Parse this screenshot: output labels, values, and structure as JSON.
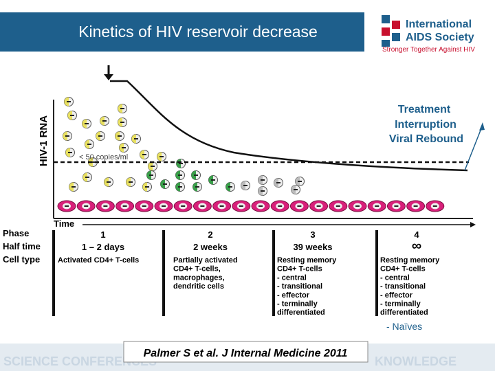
{
  "header": {
    "title": "Kinetics of HIV reservoir decrease",
    "logo": {
      "line1": "International",
      "line2": "AIDS Society",
      "tagline": "Stronger Together Against HIV"
    }
  },
  "diagram": {
    "y_label": "HIV-1 RNA",
    "threshold": "< 50 copies/ml",
    "x_label": "Time",
    "rebound": [
      "Treatment",
      "Interruption",
      "Viral Rebound"
    ],
    "row_labels": [
      "Phase",
      "Half time",
      "Cell type"
    ],
    "phases": [
      {
        "phase": "1",
        "half_time": "1 – 2 days",
        "cells": [
          "Activated CD4+ T-cells"
        ]
      },
      {
        "phase": "2",
        "half_time": "2 weeks",
        "cells": [
          "Partially activated",
          "CD4+ T-cells,",
          "macrophages,",
          "dendritic cells"
        ]
      },
      {
        "phase": "3",
        "half_time": "39 weeks",
        "cells": [
          "Resting memory",
          "CD4+ T-cells",
          "- central",
          "- transitional",
          "- effector",
          "- terminally",
          "differentiated"
        ]
      },
      {
        "phase": "4",
        "half_time": "∞",
        "cells": [
          "Resting memory",
          "CD4+ T-cells",
          "- central",
          "- transitional",
          "- effector",
          "- terminally",
          "differentiated"
        ]
      }
    ],
    "extra": "- Naïves"
  },
  "citation": "Palmer S et al. J Internal Medicine 2011"
}
